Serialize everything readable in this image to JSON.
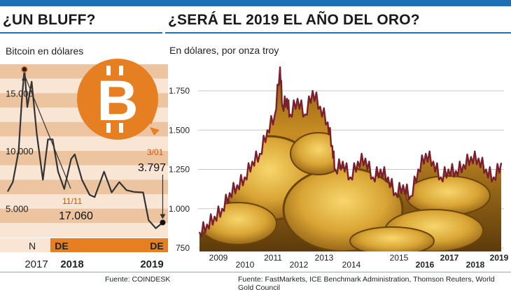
{
  "left_panel": {
    "title": "¿UN BLUFF?",
    "subtitle": "Bitcoin en dólares",
    "source": "Fuente: COINDESK"
  },
  "right_panel": {
    "title": "¿SERÁ EL 2019 EL AÑO DEL ORO?",
    "subtitle": "En dólares, por onza troy",
    "source": "Fuente: FastMarkets, ICE Benchmark Administration, Thomson Reuters, World Gold Council"
  },
  "colors": {
    "accent_blue": "#1f6fb4",
    "bitcoin_orange": "#e67e22",
    "band_dark": "#ecc4a0",
    "band_light": "#f8e5d3",
    "gold_line": "#7a1f2b",
    "gold_fill": "#d9a535"
  },
  "chart_data": [
    {
      "type": "line",
      "title": "¿UN BLUFF?",
      "ylabel": "Bitcoin en dólares",
      "ylim": [
        2500,
        17500
      ],
      "yticks": [
        5000,
        10000,
        15000
      ],
      "ytick_labels": [
        "5.000",
        "10.000",
        "15.000"
      ],
      "x_month_labels": [
        "N",
        "DE",
        "DE"
      ],
      "x_year_labels": [
        "2017",
        "2018",
        "2019"
      ],
      "x": [
        "2017-11-01",
        "2017-11-15",
        "2017-12-01",
        "2017-12-10",
        "2017-12-17",
        "2017-12-25",
        "2018-01-06",
        "2018-01-20",
        "2018-02-06",
        "2018-02-20",
        "2018-03-05",
        "2018-03-20",
        "2018-04-06",
        "2018-04-25",
        "2018-05-05",
        "2018-05-25",
        "2018-06-15",
        "2018-06-29",
        "2018-07-25",
        "2018-08-15",
        "2018-09-05",
        "2018-09-25",
        "2018-10-15",
        "2018-11-10",
        "2018-11-25",
        "2018-12-15",
        "2019-01-03"
      ],
      "values": [
        6500,
        7300,
        10000,
        14500,
        17060,
        13800,
        16000,
        11500,
        7500,
        11000,
        11000,
        8200,
        6700,
        9300,
        9700,
        7500,
        6200,
        6000,
        8200,
        6400,
        7300,
        6600,
        6450,
        6400,
        4000,
        3300,
        3797
      ],
      "annotations": [
        {
          "label": "11/11",
          "value": "17.060",
          "x": "2017-12-17",
          "y": 17060
        },
        {
          "label": "3/01",
          "value": "3.797",
          "x": "2019-01-03",
          "y": 3797
        }
      ],
      "grid": "horizontal-bands"
    },
    {
      "type": "area",
      "title": "¿SERÁ EL 2019 EL AÑO DEL ORO?",
      "ylabel": "En dólares, por onza troy",
      "ylim": [
        750,
        1950
      ],
      "yticks": [
        750,
        1000,
        1250,
        1500,
        1750
      ],
      "ytick_labels": [
        "750",
        "1.000",
        "1.250",
        "1.500",
        "1.750"
      ],
      "x_labels": [
        "2009",
        "2010",
        "2011",
        "2012",
        "2013",
        "2014",
        "2015",
        "2016",
        "2017",
        "2018",
        "2019"
      ],
      "x": [
        2009.0,
        2009.25,
        2009.5,
        2009.75,
        2010.0,
        2010.25,
        2010.5,
        2010.75,
        2011.0,
        2011.25,
        2011.5,
        2011.67,
        2011.75,
        2011.9,
        2012.0,
        2012.25,
        2012.5,
        2012.75,
        2013.0,
        2013.25,
        2013.4,
        2013.5,
        2013.75,
        2014.0,
        2014.25,
        2014.5,
        2014.75,
        2015.0,
        2015.25,
        2015.5,
        2015.75,
        2016.0,
        2016.25,
        2016.5,
        2016.75,
        2017.0,
        2017.25,
        2017.5,
        2017.75,
        2018.0,
        2018.25,
        2018.5,
        2018.75,
        2019.0
      ],
      "values": [
        850,
        900,
        950,
        1000,
        1100,
        1150,
        1200,
        1300,
        1350,
        1500,
        1600,
        1900,
        1650,
        1700,
        1600,
        1700,
        1600,
        1750,
        1650,
        1550,
        1400,
        1250,
        1300,
        1200,
        1300,
        1320,
        1200,
        1250,
        1200,
        1100,
        1150,
        1080,
        1250,
        1350,
        1300,
        1200,
        1250,
        1240,
        1280,
        1330,
        1320,
        1250,
        1200,
        1290
      ],
      "grid": "horizontal-lines"
    }
  ]
}
